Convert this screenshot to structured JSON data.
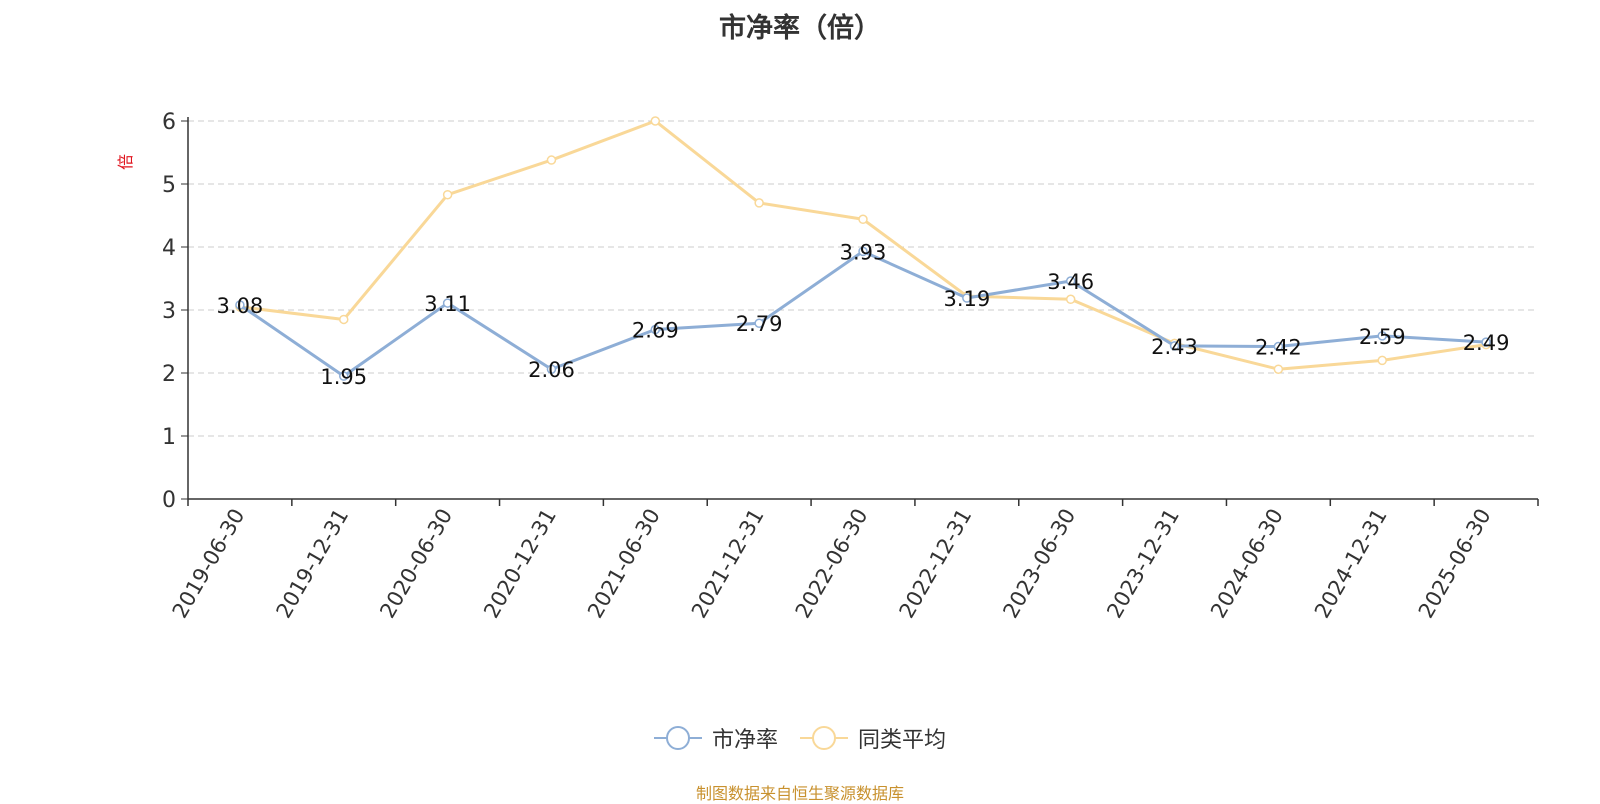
{
  "chart_data": {
    "type": "line",
    "title": "市净率（倍）",
    "ylabel": "倍",
    "ylim": [
      0,
      6
    ],
    "yticks": [
      "0",
      "1",
      "2",
      "3",
      "4",
      "5",
      "6"
    ],
    "grid": true,
    "legend_position": "bottom-center",
    "categories": [
      "2019-06-30",
      "2019-12-31",
      "2020-06-30",
      "2020-12-31",
      "2021-06-30",
      "2021-12-31",
      "2022-06-30",
      "2022-12-31",
      "2023-06-30",
      "2023-12-31",
      "2024-06-30",
      "2024-12-31",
      "2025-06-30"
    ],
    "series": [
      {
        "name": "市净率",
        "color": "#8eaed6",
        "values": [
          3.08,
          1.95,
          3.11,
          2.06,
          2.69,
          2.79,
          3.93,
          3.19,
          3.46,
          2.43,
          2.42,
          2.59,
          2.49
        ],
        "labels": [
          "3.08",
          "1.95",
          "3.11",
          "2.06",
          "2.69",
          "2.79",
          "3.93",
          "3.19",
          "3.46",
          "2.43",
          "2.42",
          "2.59",
          "2.49"
        ]
      },
      {
        "name": "同类平均",
        "color": "#f9d898",
        "values": [
          3.05,
          2.85,
          4.83,
          5.38,
          6.0,
          4.7,
          4.44,
          3.22,
          3.17,
          2.47,
          2.06,
          2.2,
          2.45
        ]
      }
    ],
    "source": "制图数据来自恒生聚源数据库",
    "colors": {
      "axis": "#333333",
      "grid": "#cccccc",
      "ylabel": "#e0141e",
      "source": "#c8912e"
    }
  }
}
